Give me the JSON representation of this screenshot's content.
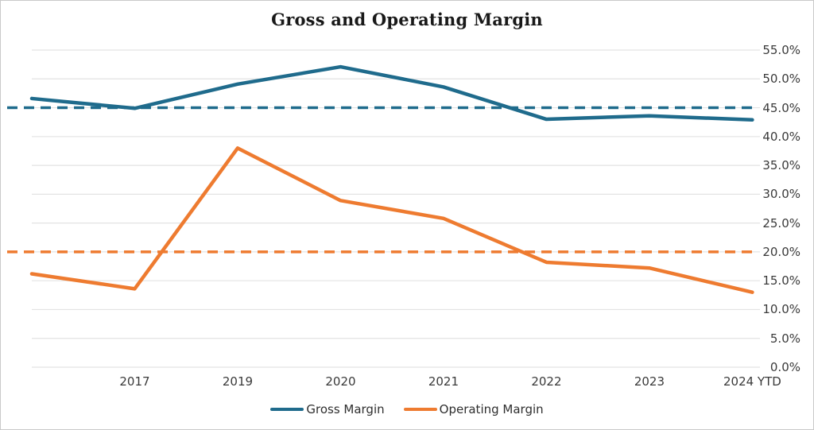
{
  "title": "Gross and Operating Margin",
  "chart_data": {
    "type": "line",
    "title": "Gross and Operating Margin",
    "categories": [
      "",
      "2017",
      "2019",
      "2020",
      "2021",
      "2022",
      "2023",
      "2024 YTD"
    ],
    "series": [
      {
        "name": "Gross Margin",
        "color": "#1f6b8c",
        "style": "solid",
        "values": [
          46.6,
          44.9,
          49.1,
          52.1,
          48.6,
          43.0,
          43.6,
          42.9
        ]
      },
      {
        "name": "Operating Margin",
        "color": "#ee7b30",
        "style": "solid",
        "values": [
          16.2,
          13.6,
          38.0,
          28.9,
          25.8,
          18.2,
          17.2,
          13.0
        ]
      }
    ],
    "reference_lines": [
      {
        "name": "Gross Margin reference",
        "color": "#1f6b8c",
        "style": "dashed",
        "value": 45.0
      },
      {
        "name": "Operating Margin reference",
        "color": "#ee7b30",
        "style": "dashed",
        "value": 20.0
      }
    ],
    "y_axis": {
      "side": "right",
      "min": 0,
      "max": 55,
      "step": 5,
      "tick_labels": [
        "0.0%",
        "5.0%",
        "10.0%",
        "15.0%",
        "20.0%",
        "25.0%",
        "30.0%",
        "35.0%",
        "40.0%",
        "45.0%",
        "50.0%",
        "55.0%"
      ]
    },
    "x_axis": {
      "tick_labels": [
        "2017",
        "2019",
        "2020",
        "2021",
        "2022",
        "2023",
        "2024 YTD"
      ]
    },
    "legend": {
      "position": "bottom",
      "entries": [
        "Gross Margin",
        "Operating Margin"
      ]
    },
    "grid": "horizontal"
  },
  "colors": {
    "gridline": "#e3e3e3",
    "axis_text": "#3a3a3a",
    "title_text": "#191919",
    "frame_border": "#c9c9c9",
    "background": "#ffffff"
  }
}
